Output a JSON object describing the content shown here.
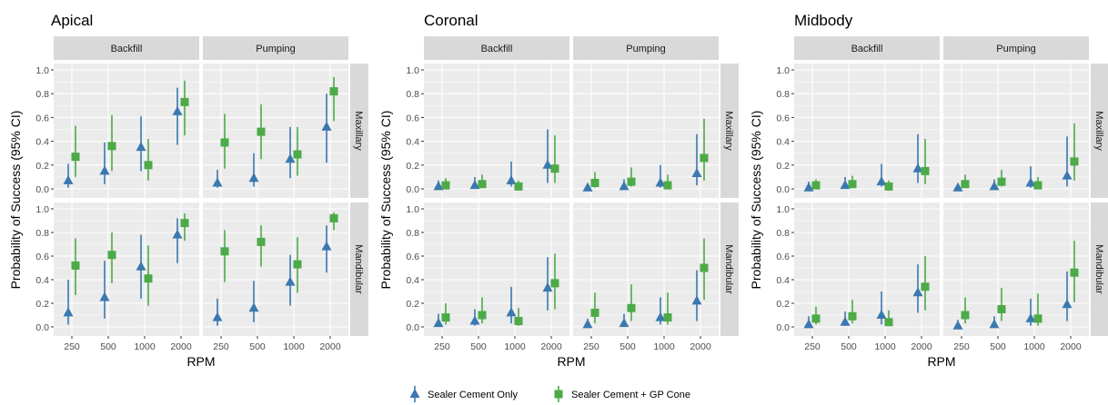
{
  "colors": {
    "sealer_cement_only": "#3a78b0",
    "sealer_cement_gp_cone": "#4caa48",
    "panel_bg": "#ebebeb",
    "strip_bg": "#d9d9d9",
    "grid": "#ffffff"
  },
  "legend": {
    "items": [
      {
        "label": "Sealer Cement Only",
        "shape": "triangle"
      },
      {
        "label": "Sealer Cement + GP Cone",
        "shape": "square"
      }
    ]
  },
  "chart_data": [
    {
      "type": "scatter",
      "title": "Apical",
      "xlabel": "RPM",
      "ylabel": "Probability of Success (95% CI)",
      "categories": [
        "250",
        "500",
        "1000",
        "2000"
      ],
      "ylim": [
        0,
        1
      ],
      "yticks": [
        "0.0",
        "0.2",
        "0.4",
        "0.6",
        "0.8",
        "1.0"
      ],
      "columns": [
        "Backfill",
        "Pumping"
      ],
      "rows": [
        "Maxillary",
        "Mandibular"
      ],
      "panels": [
        {
          "column": "Backfill",
          "row": "Maxillary",
          "series": [
            {
              "name": "Sealer Cement Only",
              "values": [
                0.07,
                0.15,
                0.35,
                0.65
              ],
              "lower": [
                0.01,
                0.04,
                0.15,
                0.37
              ],
              "upper": [
                0.21,
                0.39,
                0.61,
                0.85
              ]
            },
            {
              "name": "Sealer Cement + GP Cone",
              "values": [
                0.27,
                0.36,
                0.2,
                0.73
              ],
              "lower": [
                0.1,
                0.15,
                0.07,
                0.45
              ],
              "upper": [
                0.53,
                0.62,
                0.42,
                0.91
              ]
            }
          ]
        },
        {
          "column": "Pumping",
          "row": "Maxillary",
          "series": [
            {
              "name": "Sealer Cement Only",
              "values": [
                0.05,
                0.09,
                0.25,
                0.52
              ],
              "lower": [
                0.01,
                0.02,
                0.09,
                0.22
              ],
              "upper": [
                0.16,
                0.3,
                0.52,
                0.8
              ]
            },
            {
              "name": "Sealer Cement + GP Cone",
              "values": [
                0.39,
                0.48,
                0.29,
                0.82
              ],
              "lower": [
                0.17,
                0.25,
                0.11,
                0.57
              ],
              "upper": [
                0.63,
                0.71,
                0.52,
                0.94
              ]
            }
          ]
        },
        {
          "column": "Backfill",
          "row": "Mandibular",
          "series": [
            {
              "name": "Sealer Cement Only",
              "values": [
                0.12,
                0.25,
                0.51,
                0.78
              ],
              "lower": [
                0.02,
                0.07,
                0.24,
                0.54
              ],
              "upper": [
                0.4,
                0.56,
                0.78,
                0.92
              ]
            },
            {
              "name": "Sealer Cement + GP Cone",
              "values": [
                0.52,
                0.61,
                0.41,
                0.88
              ],
              "lower": [
                0.27,
                0.37,
                0.18,
                0.73
              ],
              "upper": [
                0.75,
                0.8,
                0.69,
                0.96
              ]
            }
          ]
        },
        {
          "column": "Pumping",
          "row": "Mandibular",
          "series": [
            {
              "name": "Sealer Cement Only",
              "values": [
                0.08,
                0.16,
                0.38,
                0.68
              ],
              "lower": [
                0.01,
                0.04,
                0.18,
                0.46
              ],
              "upper": [
                0.24,
                0.39,
                0.61,
                0.86
              ]
            },
            {
              "name": "Sealer Cement + GP Cone",
              "values": [
                0.64,
                0.72,
                0.53,
                0.92
              ],
              "lower": [
                0.38,
                0.51,
                0.29,
                0.82
              ],
              "upper": [
                0.82,
                0.86,
                0.76,
                0.97
              ]
            }
          ]
        }
      ]
    },
    {
      "type": "scatter",
      "title": "Coronal",
      "xlabel": "RPM",
      "ylabel": "Probability of Success (95% CI)",
      "categories": [
        "250",
        "500",
        "1000",
        "2000"
      ],
      "ylim": [
        0,
        1
      ],
      "yticks": [
        "0.0",
        "0.2",
        "0.4",
        "0.6",
        "0.8",
        "1.0"
      ],
      "columns": [
        "Backfill",
        "Pumping"
      ],
      "rows": [
        "Maxillary",
        "Mandibular"
      ],
      "panels": [
        {
          "column": "Backfill",
          "row": "Maxillary",
          "series": [
            {
              "name": "Sealer Cement Only",
              "values": [
                0.02,
                0.03,
                0.07,
                0.2
              ],
              "lower": [
                0.0,
                0.01,
                0.02,
                0.05
              ],
              "upper": [
                0.07,
                0.1,
                0.23,
                0.5
              ]
            },
            {
              "name": "Sealer Cement + GP Cone",
              "values": [
                0.03,
                0.04,
                0.02,
                0.17
              ],
              "lower": [
                0.01,
                0.01,
                0.0,
                0.05
              ],
              "upper": [
                0.09,
                0.12,
                0.07,
                0.45
              ]
            }
          ]
        },
        {
          "column": "Pumping",
          "row": "Maxillary",
          "series": [
            {
              "name": "Sealer Cement Only",
              "values": [
                0.01,
                0.02,
                0.05,
                0.13
              ],
              "lower": [
                0.0,
                0.0,
                0.01,
                0.03
              ],
              "upper": [
                0.04,
                0.08,
                0.2,
                0.46
              ]
            },
            {
              "name": "Sealer Cement + GP Cone",
              "values": [
                0.05,
                0.06,
                0.03,
                0.26
              ],
              "lower": [
                0.01,
                0.02,
                0.01,
                0.07
              ],
              "upper": [
                0.14,
                0.18,
                0.12,
                0.59
              ]
            }
          ]
        },
        {
          "column": "Backfill",
          "row": "Mandibular",
          "series": [
            {
              "name": "Sealer Cement Only",
              "values": [
                0.03,
                0.05,
                0.12,
                0.33
              ],
              "lower": [
                0.0,
                0.01,
                0.03,
                0.14
              ],
              "upper": [
                0.11,
                0.15,
                0.34,
                0.59
              ]
            },
            {
              "name": "Sealer Cement + GP Cone",
              "values": [
                0.08,
                0.1,
                0.05,
                0.37
              ],
              "lower": [
                0.02,
                0.03,
                0.01,
                0.15
              ],
              "upper": [
                0.2,
                0.25,
                0.16,
                0.62
              ]
            }
          ]
        },
        {
          "column": "Pumping",
          "row": "Mandibular",
          "series": [
            {
              "name": "Sealer Cement Only",
              "values": [
                0.02,
                0.03,
                0.08,
                0.22
              ],
              "lower": [
                0.0,
                0.0,
                0.02,
                0.05
              ],
              "upper": [
                0.07,
                0.11,
                0.25,
                0.48
              ]
            },
            {
              "name": "Sealer Cement + GP Cone",
              "values": [
                0.12,
                0.16,
                0.08,
                0.5
              ],
              "lower": [
                0.03,
                0.05,
                0.02,
                0.23
              ],
              "upper": [
                0.29,
                0.36,
                0.29,
                0.75
              ]
            }
          ]
        }
      ]
    },
    {
      "type": "scatter",
      "title": "Midbody",
      "xlabel": "RPM",
      "ylabel": "Probability of Success (95% CI)",
      "categories": [
        "250",
        "500",
        "1000",
        "2000"
      ],
      "ylim": [
        0,
        1
      ],
      "yticks": [
        "0.0",
        "0.2",
        "0.4",
        "0.6",
        "0.8",
        "1.0"
      ],
      "columns": [
        "Backfill",
        "Pumping"
      ],
      "rows": [
        "Maxillary",
        "Mandibular"
      ],
      "panels": [
        {
          "column": "Backfill",
          "row": "Maxillary",
          "series": [
            {
              "name": "Sealer Cement Only",
              "values": [
                0.01,
                0.03,
                0.06,
                0.17
              ],
              "lower": [
                0.0,
                0.01,
                0.02,
                0.05
              ],
              "upper": [
                0.06,
                0.1,
                0.21,
                0.46
              ]
            },
            {
              "name": "Sealer Cement + GP Cone",
              "values": [
                0.03,
                0.04,
                0.02,
                0.15
              ],
              "lower": [
                0.01,
                0.01,
                0.0,
                0.04
              ],
              "upper": [
                0.08,
                0.11,
                0.07,
                0.42
              ]
            }
          ]
        },
        {
          "column": "Pumping",
          "row": "Maxillary",
          "series": [
            {
              "name": "Sealer Cement Only",
              "values": [
                0.01,
                0.02,
                0.05,
                0.11
              ],
              "lower": [
                0.0,
                0.0,
                0.01,
                0.02
              ],
              "upper": [
                0.04,
                0.08,
                0.19,
                0.44
              ]
            },
            {
              "name": "Sealer Cement + GP Cone",
              "values": [
                0.04,
                0.06,
                0.03,
                0.23
              ],
              "lower": [
                0.01,
                0.02,
                0.01,
                0.07
              ],
              "upper": [
                0.12,
                0.16,
                0.1,
                0.55
              ]
            }
          ]
        },
        {
          "column": "Backfill",
          "row": "Mandibular",
          "series": [
            {
              "name": "Sealer Cement Only",
              "values": [
                0.02,
                0.04,
                0.1,
                0.29
              ],
              "lower": [
                0.0,
                0.01,
                0.02,
                0.12
              ],
              "upper": [
                0.09,
                0.13,
                0.3,
                0.53
              ]
            },
            {
              "name": "Sealer Cement + GP Cone",
              "values": [
                0.07,
                0.09,
                0.04,
                0.34
              ],
              "lower": [
                0.02,
                0.03,
                0.01,
                0.14
              ],
              "upper": [
                0.17,
                0.23,
                0.14,
                0.6
              ]
            }
          ]
        },
        {
          "column": "Pumping",
          "row": "Mandibular",
          "series": [
            {
              "name": "Sealer Cement Only",
              "values": [
                0.01,
                0.02,
                0.07,
                0.19
              ],
              "lower": [
                0.0,
                0.0,
                0.01,
                0.05
              ],
              "upper": [
                0.06,
                0.09,
                0.24,
                0.47
              ]
            },
            {
              "name": "Sealer Cement + GP Cone",
              "values": [
                0.1,
                0.15,
                0.07,
                0.46
              ],
              "lower": [
                0.03,
                0.05,
                0.01,
                0.21
              ],
              "upper": [
                0.25,
                0.33,
                0.28,
                0.73
              ]
            }
          ]
        }
      ]
    }
  ]
}
